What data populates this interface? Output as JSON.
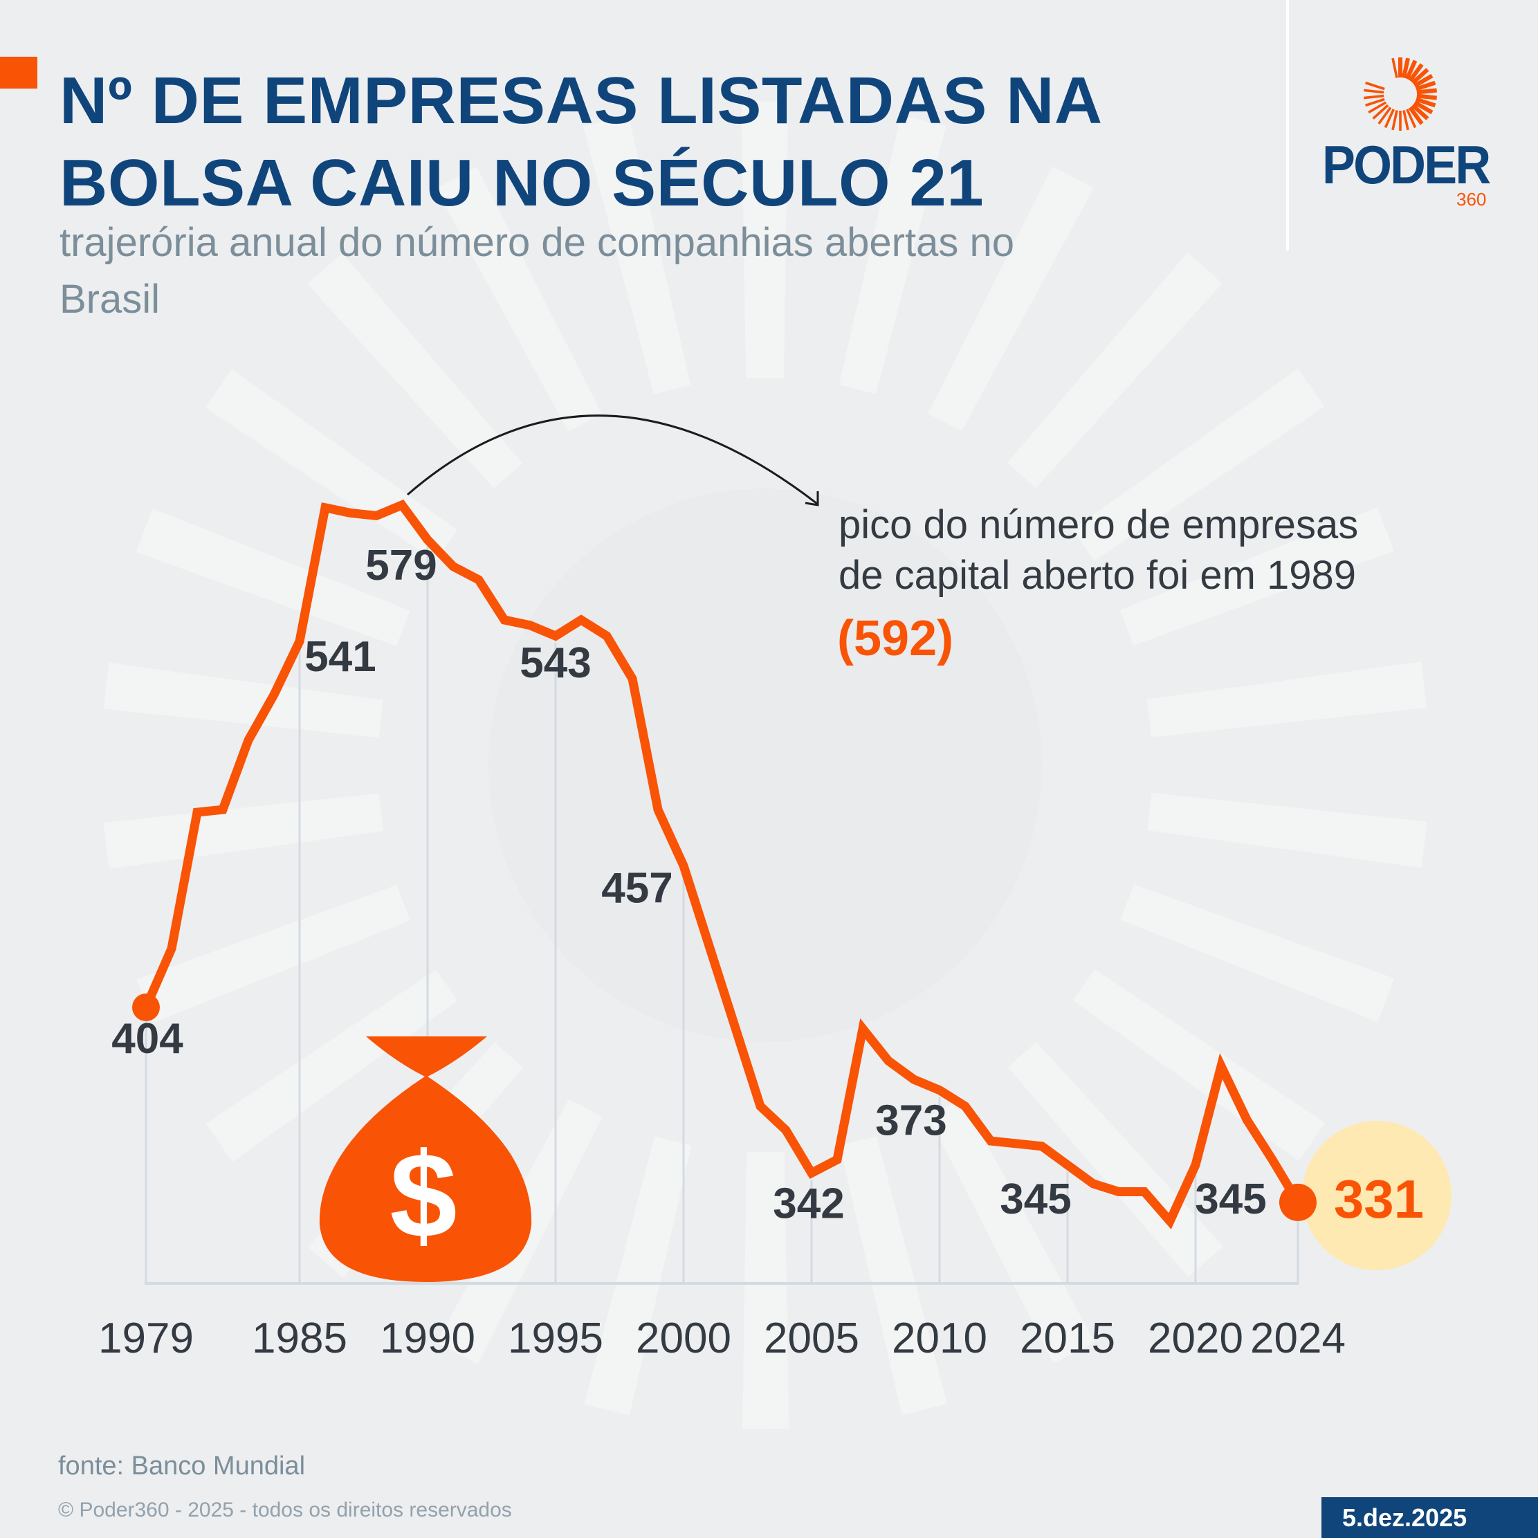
{
  "header": {
    "title_line1": "Nº DE EMPRESAS LISTADAS NA",
    "title_line2": "BOLSA CAIU NO SÉCULO 21",
    "subtitle_line1": "trajerória anual do número de companhias abertas no",
    "subtitle_line2": "Brasil"
  },
  "logo": {
    "word": "PODER",
    "number": "360",
    "icon": "sun-rays-icon"
  },
  "colors": {
    "accent": "#f95306",
    "brand_blue": "#10457c",
    "text_dark": "#343a42",
    "subtitle_gray": "#7b8e9a",
    "highlight_circle": "#ffe9b3",
    "gridline": "#d3dbe1",
    "background": "#edeef0"
  },
  "annotation": {
    "line1": "pico do número de empresas",
    "line2": "de capital aberto foi em 1989",
    "value": "(592)"
  },
  "decoration": {
    "icon": "money-bag-icon",
    "symbol": "$"
  },
  "footer": {
    "source": "fonte: Banco Mundial",
    "copyright": "© Poder360 - 2025 - todos os direitos reservados",
    "date": "5.dez.2025"
  },
  "chart_data": {
    "type": "line",
    "title": "Nº de empresas listadas na bolsa caiu no século 21",
    "subtitle": "trajerória anual do número de companhias abertas no Brasil",
    "xlabel": "",
    "ylabel": "",
    "grid": "vertical lines at labeled years",
    "legend": "none",
    "ylim": [
      300,
      600
    ],
    "xlim": [
      1979,
      2024
    ],
    "x_tick_labels": [
      "1979",
      "1985",
      "1990",
      "1995",
      "2000",
      "2005",
      "2010",
      "2015",
      "2020",
      "2024"
    ],
    "series": [
      {
        "name": "Empresas listadas",
        "x": [
          1979,
          1980,
          1981,
          1982,
          1983,
          1984,
          1985,
          1986,
          1987,
          1988,
          1989,
          1990,
          1991,
          1992,
          1993,
          1994,
          1995,
          1996,
          1997,
          1998,
          1999,
          2000,
          2001,
          2002,
          2003,
          2004,
          2005,
          2006,
          2007,
          2008,
          2009,
          2010,
          2011,
          2012,
          2013,
          2014,
          2015,
          2016,
          2017,
          2018,
          2019,
          2020,
          2021,
          2022,
          2023,
          2024
        ],
        "values": [
          404,
          426,
          477,
          478,
          504,
          521,
          541,
          591,
          589,
          588,
          592,
          579,
          569,
          564,
          549,
          547,
          543,
          549,
          543,
          527,
          478,
          457,
          427,
          397,
          367,
          358,
          342,
          347,
          396,
          384,
          377,
          373,
          367,
          354,
          353,
          352,
          345,
          338,
          335,
          335,
          324,
          345,
          382,
          362,
          347,
          331
        ]
      }
    ],
    "data_labels": [
      {
        "year": 1979,
        "text": "404",
        "highlight": false
      },
      {
        "year": 1985,
        "text": "541",
        "highlight": false
      },
      {
        "year": 1990,
        "text": "579",
        "highlight": false
      },
      {
        "year": 1995,
        "text": "543",
        "highlight": false
      },
      {
        "year": 2000,
        "text": "457",
        "highlight": false
      },
      {
        "year": 2005,
        "text": "342",
        "highlight": false
      },
      {
        "year": 2010,
        "text": "373",
        "highlight": false
      },
      {
        "year": 2015,
        "text": "345",
        "highlight": false
      },
      {
        "year": 2020,
        "text": "345",
        "highlight": false
      },
      {
        "year": 2024,
        "text": "331",
        "highlight": true
      }
    ],
    "annotations": [
      {
        "text": "pico do número de empresas de capital aberto foi em 1989 (592)",
        "points_to_year": 1989,
        "value": 592
      }
    ]
  }
}
